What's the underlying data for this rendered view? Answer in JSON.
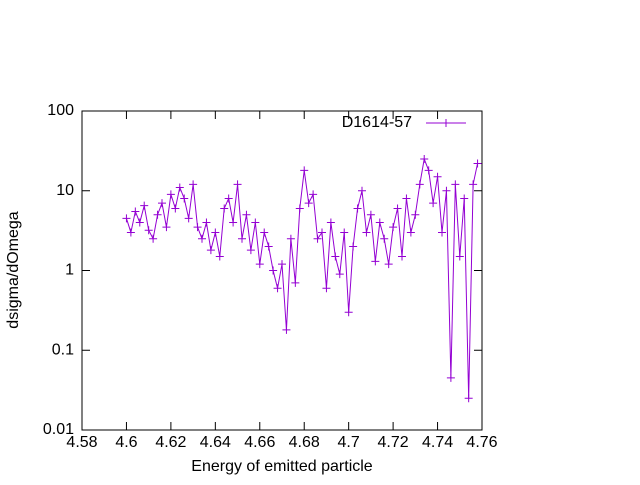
{
  "chart_data": {
    "type": "line",
    "xlabel": "Energy of emitted particle",
    "ylabel": "dsigma/dOmega",
    "x": [
      4.6,
      4.602,
      4.604,
      4.606,
      4.608,
      4.61,
      4.612,
      4.614,
      4.616,
      4.618,
      4.62,
      4.622,
      4.624,
      4.626,
      4.628,
      4.63,
      4.632,
      4.634,
      4.636,
      4.638,
      4.64,
      4.642,
      4.644,
      4.646,
      4.648,
      4.65,
      4.652,
      4.654,
      4.656,
      4.658,
      4.66,
      4.662,
      4.664,
      4.666,
      4.668,
      4.67,
      4.672,
      4.674,
      4.676,
      4.678,
      4.68,
      4.682,
      4.684,
      4.686,
      4.688,
      4.69,
      4.692,
      4.694,
      4.696,
      4.698,
      4.7,
      4.702,
      4.704,
      4.706,
      4.708,
      4.71,
      4.712,
      4.714,
      4.716,
      4.718,
      4.72,
      4.722,
      4.724,
      4.726,
      4.728,
      4.73,
      4.732,
      4.734,
      4.736,
      4.738,
      4.74,
      4.742,
      4.744,
      4.746,
      4.748,
      4.75,
      4.752,
      4.754,
      4.756,
      4.758
    ],
    "series": [
      {
        "name": "D1614-57",
        "color": "#9400d3",
        "values": [
          4.5,
          3,
          5.5,
          4,
          6.5,
          3.2,
          2.5,
          5,
          7,
          3.5,
          9,
          6,
          11,
          8,
          4.5,
          12,
          3.5,
          2.5,
          4,
          1.8,
          3,
          1.5,
          6,
          8,
          4,
          12,
          2.5,
          5,
          1.8,
          4,
          1.2,
          3,
          2,
          1,
          0.6,
          1.2,
          0.18,
          2.5,
          0.7,
          6,
          18,
          7,
          9,
          2.5,
          3,
          0.6,
          4,
          1.5,
          0.9,
          3,
          0.3,
          2,
          6,
          10,
          3,
          5,
          1.3,
          4,
          2.5,
          1.2,
          3.5,
          6,
          1.5,
          8,
          3,
          5,
          12,
          25,
          18,
          7,
          15,
          3,
          10,
          0.045,
          12,
          1.5,
          8,
          0.025,
          12,
          22
        ]
      }
    ],
    "xlim": [
      4.58,
      4.76
    ],
    "xticks": [
      4.58,
      4.6,
      4.62,
      4.64,
      4.66,
      4.68,
      4.7,
      4.72,
      4.74,
      4.76
    ],
    "ylim": [
      0.01,
      100
    ],
    "yticks": [
      0.01,
      0.1,
      1,
      10,
      100
    ],
    "yscale": "log",
    "legend": "top-right"
  }
}
